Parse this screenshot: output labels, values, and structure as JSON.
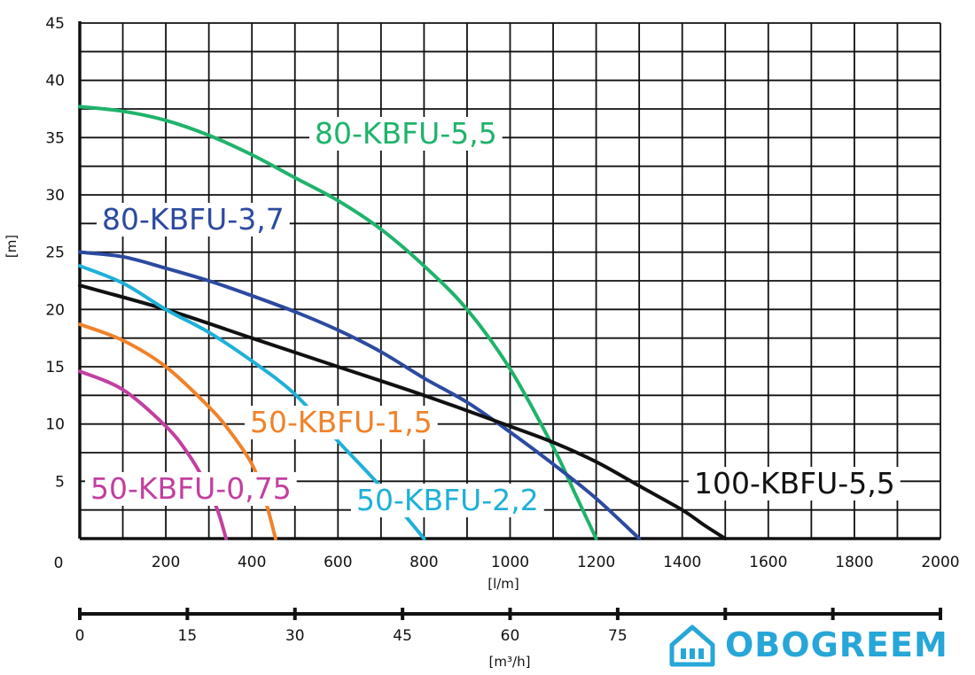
{
  "chart_data": {
    "type": "line",
    "title": "",
    "ylabel": "[m]",
    "xlabel": "[l/m]",
    "x2label": "[m³/h]",
    "xlim": [
      0,
      2000
    ],
    "ylim": [
      0,
      45
    ],
    "grid": true,
    "y_ticks": [
      5,
      10,
      15,
      20,
      25,
      30,
      35,
      40,
      45
    ],
    "origin_label": "0",
    "x_ticks": [
      200,
      400,
      600,
      800,
      1000,
      1200,
      1400,
      1600,
      1800,
      2000
    ],
    "x2_ticks": [
      0,
      15,
      30,
      45,
      60,
      75
    ],
    "series": [
      {
        "name": "80-KBFU-5,5",
        "color": "#1fb36b",
        "x": [
          0,
          100,
          200,
          300,
          400,
          500,
          600,
          700,
          800,
          900,
          1000,
          1100,
          1150,
          1200
        ],
        "y": [
          37.7,
          37.3,
          36.5,
          35.2,
          33.5,
          31.5,
          29.5,
          27.0,
          23.8,
          20.0,
          14.8,
          8.0,
          4.0,
          0
        ]
      },
      {
        "name": "80-KBFU-3,7",
        "color": "#2c4aa0",
        "x": [
          0,
          100,
          200,
          300,
          400,
          500,
          600,
          700,
          800,
          900,
          1000,
          1100,
          1200,
          1300
        ],
        "y": [
          25,
          24.6,
          23.6,
          22.5,
          21.2,
          19.8,
          18.2,
          16.3,
          14.0,
          11.9,
          9.3,
          6.5,
          3.5,
          0
        ]
      },
      {
        "name": "100-KBFU-5,5",
        "color": "#111111",
        "x": [
          0,
          200,
          400,
          600,
          800,
          1000,
          1100,
          1200,
          1300,
          1400,
          1450,
          1500
        ],
        "y": [
          22.1,
          20,
          17.5,
          15.0,
          12.5,
          9.8,
          8.4,
          6.7,
          4.6,
          2.5,
          1.2,
          0
        ]
      },
      {
        "name": "50-KBFU-2,2",
        "color": "#1fb0d8",
        "x": [
          0,
          100,
          200,
          300,
          400,
          500,
          600,
          700,
          800
        ],
        "y": [
          23.8,
          22.3,
          20.0,
          18.0,
          15.5,
          12.6,
          8.5,
          4.5,
          0
        ]
      },
      {
        "name": "50-KBFU-1,5",
        "color": "#f0822a",
        "x": [
          0,
          100,
          200,
          300,
          350,
          400,
          430,
          455
        ],
        "y": [
          18.7,
          17.3,
          15.0,
          11.5,
          9.3,
          6.5,
          3.5,
          0
        ]
      },
      {
        "name": "50-KBFU-0,75",
        "color": "#c23fa0",
        "x": [
          0,
          100,
          200,
          250,
          290,
          320,
          340
        ],
        "y": [
          14.6,
          13.0,
          9.8,
          7.5,
          5.0,
          2.5,
          0
        ]
      }
    ]
  },
  "logo": {
    "text": "OBOGREEM",
    "color": "#27a6d8",
    "icon": "house-icon"
  }
}
